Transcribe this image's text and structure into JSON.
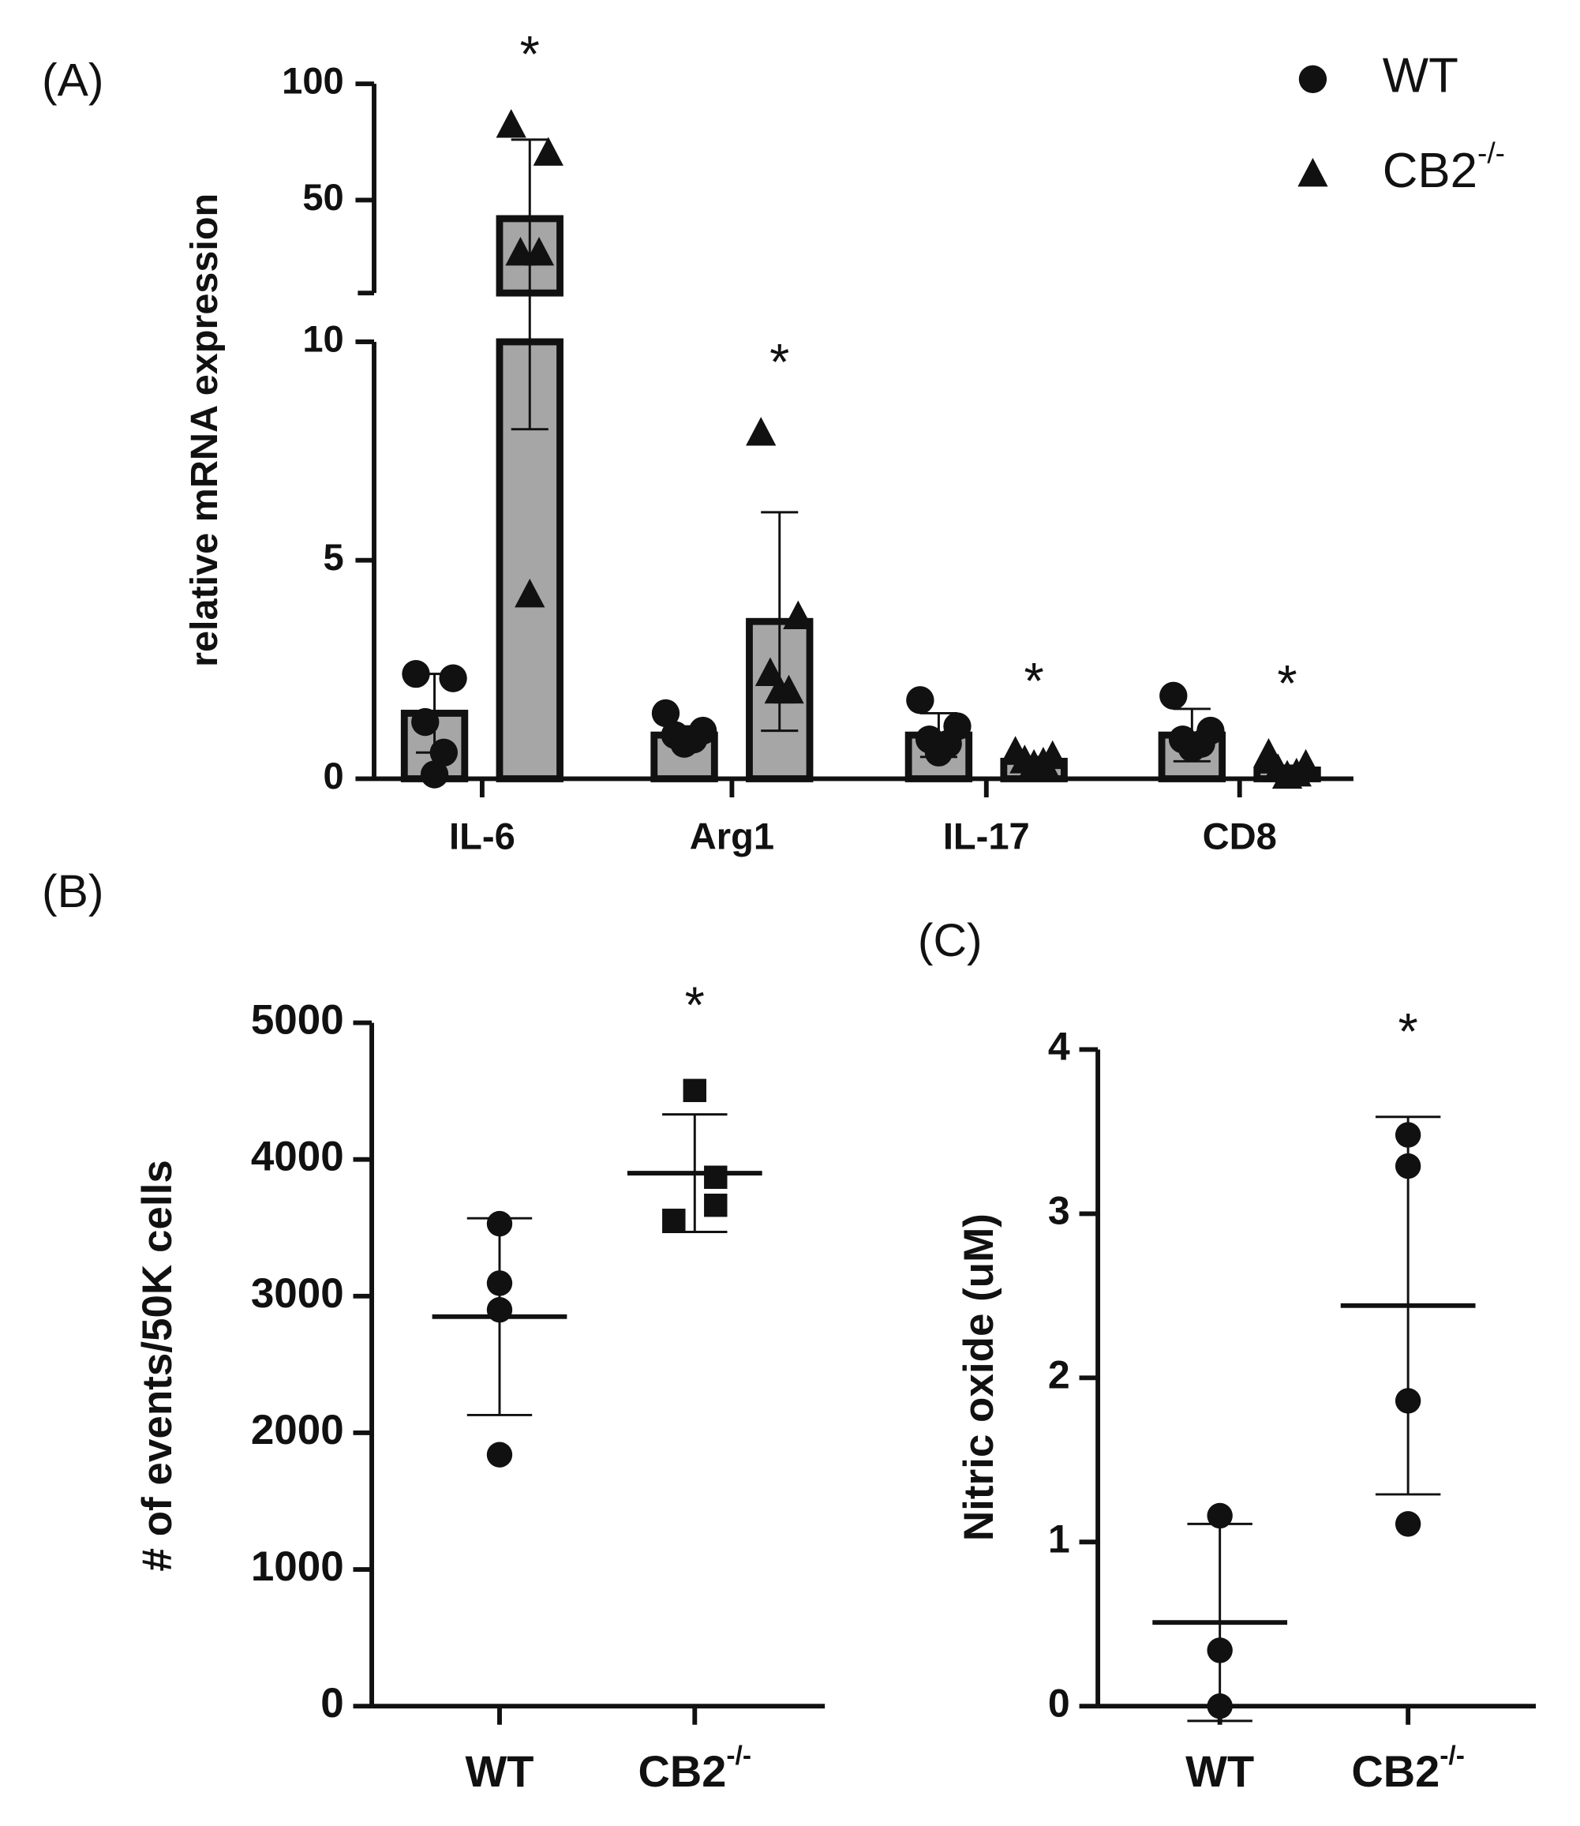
{
  "chart_data": [
    {
      "type": "bar",
      "panel_label": "(A)",
      "y_label": "relative mRNA expression",
      "categories": [
        "IL-6",
        "Arg1",
        "IL-17",
        "CD8"
      ],
      "segments": [
        {
          "ylim": [
            0,
            10
          ],
          "yticks": [
            0,
            5,
            10
          ]
        },
        {
          "ylim": [
            10,
            100
          ],
          "yticks": [
            50,
            100
          ]
        }
      ],
      "series": [
        {
          "name": "WT",
          "marker": "circle",
          "color": "#a6a6a6",
          "values": [
            1.5,
            1.0,
            1.0,
            1.0
          ],
          "errors": [
            0.9,
            0.2,
            0.5,
            0.6
          ],
          "points": [
            [
              2.4,
              2.3,
              1.3,
              0.6,
              0.1
            ],
            [
              1.5,
              1.1,
              1.0,
              0.9,
              0.8
            ],
            [
              1.8,
              1.2,
              0.9,
              0.8,
              0.6
            ],
            [
              1.9,
              1.1,
              0.9,
              0.8,
              0.7
            ]
          ]
        },
        {
          "name": "CB2",
          "name_superscript": "-/-",
          "marker": "triangle",
          "color": "#a6a6a6",
          "values": [
            42,
            3.6,
            0.4,
            0.2
          ],
          "errors": [
            34,
            2.5,
            0.1,
            0.1
          ],
          "points": [
            [
              82,
              70,
              27,
              27,
              4.2
            ],
            [
              7.9,
              3.7,
              2.4,
              2.0,
              2.0
            ],
            [
              0.6,
              0.5,
              0.4,
              0.35,
              0.3
            ],
            [
              0.55,
              0.3,
              0.2,
              0.1,
              0.05
            ]
          ],
          "annotations": [
            "*",
            "*",
            "*",
            "*"
          ]
        }
      ]
    },
    {
      "type": "dot",
      "panel_label": "(B)",
      "y_label": "# of events/50K cells",
      "ylim": [
        0,
        5000
      ],
      "yticks": [
        0,
        1000,
        2000,
        3000,
        4000,
        5000
      ],
      "groups": [
        {
          "name": "WT",
          "marker": "circle",
          "points": [
            3530,
            3095,
            2900,
            1840
          ],
          "mean": 2850,
          "error": 720
        },
        {
          "name": "CB2",
          "name_superscript": "-/-",
          "marker": "square",
          "points": [
            4505,
            3870,
            3665,
            3555
          ],
          "mean": 3900,
          "error": 430,
          "annotation": "*"
        }
      ]
    },
    {
      "type": "dot",
      "panel_label": "(C)",
      "y_label": "Nitric oxide (uM)",
      "ylim": [
        0,
        4
      ],
      "yticks": [
        0,
        1,
        2,
        3,
        4
      ],
      "groups": [
        {
          "name": "WT",
          "marker": "circle",
          "points": [
            1.16,
            0.34,
            0.0
          ],
          "mean": 0.51,
          "error": 0.6
        },
        {
          "name": "CB2",
          "name_superscript": "-/-",
          "marker": "circle",
          "points": [
            3.48,
            3.29,
            1.86,
            1.11
          ],
          "mean": 2.44,
          "error": 1.15,
          "annotation": "*"
        }
      ]
    }
  ]
}
